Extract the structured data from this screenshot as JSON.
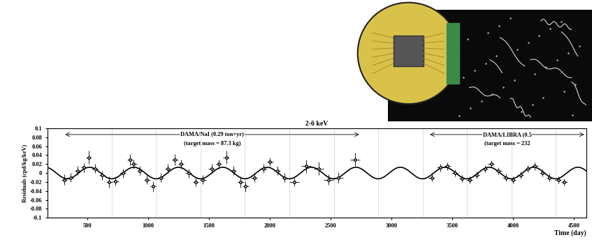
{
  "chart_data": {
    "type": "scatter",
    "title": "2-6 keV",
    "x_label": "Time (day)",
    "y_label": "Residuals (cpd/kg/keV)",
    "xlim": [
      170,
      4600
    ],
    "ylim": [
      -0.1,
      0.1
    ],
    "xticks": [
      500,
      1000,
      1500,
      2000,
      2500,
      3000,
      3500,
      4000,
      4500
    ],
    "yticks": [
      -0.1,
      -0.08,
      -0.06,
      -0.04,
      -0.02,
      0,
      0.02,
      0.04,
      0.06,
      0.08,
      0.1
    ],
    "grid": false,
    "color": "#000000",
    "marker": "o",
    "x": [
      310,
      360,
      420,
      470,
      510,
      560,
      620,
      680,
      730,
      790,
      850,
      880,
      930,
      990,
      1040,
      1100,
      1160,
      1220,
      1270,
      1330,
      1390,
      1450,
      1520,
      1580,
      1640,
      1700,
      1760,
      1800,
      1870,
      1950,
      2000,
      2060,
      2120,
      2200,
      2300,
      2400,
      2480,
      2560,
      2700,
      3330,
      3400,
      3460,
      3520,
      3580,
      3640,
      3700,
      3770,
      3820,
      3880,
      3940,
      4000,
      4060,
      4120,
      4180,
      4240,
      4300,
      4370,
      4420
    ],
    "values": [
      -0.015,
      -0.01,
      0.005,
      0.012,
      0.035,
      0.01,
      -0.005,
      -0.02,
      -0.018,
      0.0,
      0.03,
      0.02,
      0.005,
      -0.015,
      -0.03,
      -0.01,
      0.01,
      0.03,
      0.02,
      0.0,
      -0.02,
      -0.015,
      0.01,
      0.02,
      0.035,
      0.005,
      -0.02,
      -0.03,
      -0.01,
      0.01,
      0.025,
      0.005,
      -0.01,
      -0.02,
      0.015,
      0.01,
      -0.015,
      -0.01,
      0.03,
      -0.01,
      0.012,
      0.015,
      0.0,
      -0.012,
      -0.015,
      -0.005,
      0.01,
      0.02,
      0.005,
      -0.01,
      -0.015,
      -0.005,
      0.01,
      0.015,
      0.0,
      -0.01,
      -0.015,
      -0.02
    ],
    "errors": [
      0.012,
      0.01,
      0.01,
      0.01,
      0.015,
      0.01,
      0.01,
      0.012,
      0.01,
      0.01,
      0.012,
      0.01,
      0.01,
      0.01,
      0.012,
      0.01,
      0.01,
      0.012,
      0.01,
      0.01,
      0.01,
      0.01,
      0.01,
      0.01,
      0.015,
      0.01,
      0.012,
      0.012,
      0.01,
      0.01,
      0.01,
      0.01,
      0.01,
      0.01,
      0.015,
      0.015,
      0.012,
      0.012,
      0.015,
      0.008,
      0.008,
      0.008,
      0.008,
      0.008,
      0.008,
      0.008,
      0.008,
      0.008,
      0.008,
      0.008,
      0.008,
      0.008,
      0.008,
      0.008,
      0.008,
      0.008,
      0.008,
      0.008
    ],
    "x_errors": [
      25,
      25,
      25,
      25,
      25,
      25,
      25,
      25,
      25,
      25,
      25,
      25,
      25,
      25,
      25,
      25,
      25,
      25,
      25,
      25,
      25,
      25,
      25,
      25,
      25,
      25,
      25,
      25,
      25,
      25,
      25,
      25,
      25,
      40,
      40,
      40,
      40,
      40,
      40,
      25,
      25,
      25,
      25,
      25,
      25,
      25,
      25,
      25,
      25,
      25,
      25,
      25,
      25,
      25,
      25,
      25,
      25,
      25
    ],
    "fit": {
      "amplitude": 0.0129,
      "period": 365,
      "phase": 152.5
    },
    "vlines": [
      700,
      1065,
      1430,
      1795,
      2160,
      2525,
      2890,
      3255,
      3620,
      3985,
      4350
    ],
    "spans": [
      {
        "label": [
          "DAMA/NaI (0.29 ton×yr)",
          "(target mass = 87.3 kg)"
        ],
        "start": 300,
        "end": 2750
      },
      {
        "label": [
          "DAMA/LIBRA (0.5",
          "(target mass = 232"
        ],
        "start": 3300,
        "end": 4600
      }
    ]
  }
}
